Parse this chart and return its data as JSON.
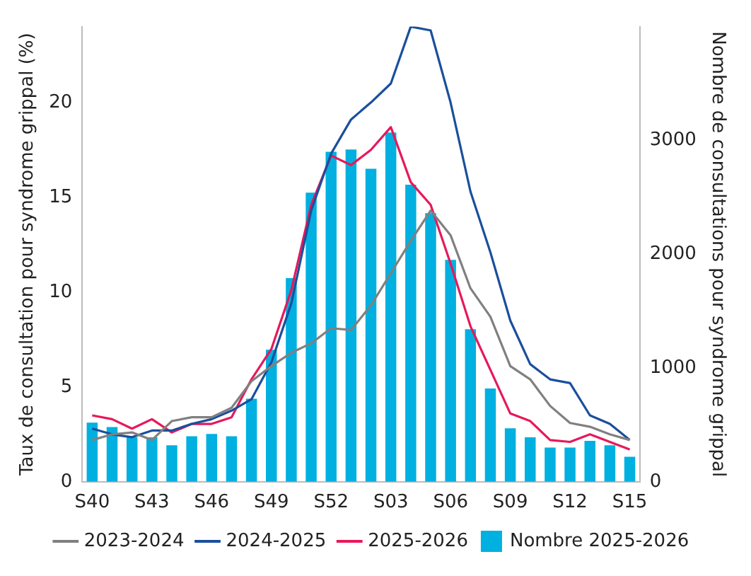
{
  "chart_data": {
    "type": "line",
    "ylabel": "Taux de consultation pour syndrome grippal (%)",
    "y2label": "Nombre de consultations pour syndrome grippal",
    "categories": [
      "S40",
      null,
      null,
      "S43",
      null,
      null,
      "S46",
      null,
      null,
      "S49",
      null,
      null,
      "S52",
      null,
      null,
      "S03",
      null,
      null,
      "S06",
      null,
      null,
      "S09",
      null,
      null,
      "S12",
      null,
      null,
      "S15"
    ],
    "ylim": [
      0,
      24
    ],
    "yticks": [
      0,
      5,
      10,
      15,
      20
    ],
    "y2lim": [
      0,
      4000
    ],
    "y2ticks": [
      0,
      1000,
      2000,
      3000
    ],
    "grid": false,
    "legend": "bottom",
    "line_style": "solid",
    "marker": "none",
    "series": [
      {
        "name": "2023-2024",
        "color": "#808080",
        "values": [
          2.2,
          2.5,
          2.6,
          2.2,
          3.2,
          3.4,
          3.4,
          3.9,
          5.3,
          6.1,
          6.8,
          7.3,
          8.1,
          8.0,
          9.3,
          11.0,
          12.7,
          14.3,
          13.0,
          10.2,
          8.7,
          6.1,
          5.4,
          4.0,
          3.1,
          2.9,
          2.5,
          2.2
        ]
      },
      {
        "name": "2024-2025",
        "color": "#1a4f9c",
        "values": [
          2.8,
          2.5,
          2.35,
          2.7,
          2.7,
          3.05,
          3.3,
          3.75,
          4.35,
          6.3,
          9.4,
          14.3,
          17.3,
          19.1,
          20.0,
          21.0,
          24.0,
          23.8,
          20.0,
          15.3,
          12.1,
          8.5,
          6.2,
          5.4,
          5.2,
          3.5,
          3.05,
          2.2
        ]
      },
      {
        "name": "2025-2026",
        "color": "#e6195a",
        "values": [
          3.5,
          3.3,
          2.8,
          3.3,
          2.6,
          3.05,
          3.05,
          3.4,
          5.4,
          7.0,
          10.1,
          14.6,
          17.2,
          16.7,
          17.5,
          18.7,
          15.8,
          14.6,
          11.5,
          8.2,
          5.9,
          3.6,
          3.2,
          2.2,
          2.1,
          2.5,
          2.1,
          1.7
        ]
      },
      {
        "name": "Nombre 2025-2026",
        "type": "bar",
        "axis": "y2",
        "color": "#00b0e0",
        "values": [
          520,
          480,
          390,
          390,
          320,
          400,
          420,
          400,
          730,
          1160,
          1790,
          2540,
          2900,
          2920,
          2750,
          3070,
          2610,
          2360,
          1950,
          1340,
          820,
          470,
          390,
          300,
          300,
          360,
          320,
          220
        ]
      }
    ]
  }
}
